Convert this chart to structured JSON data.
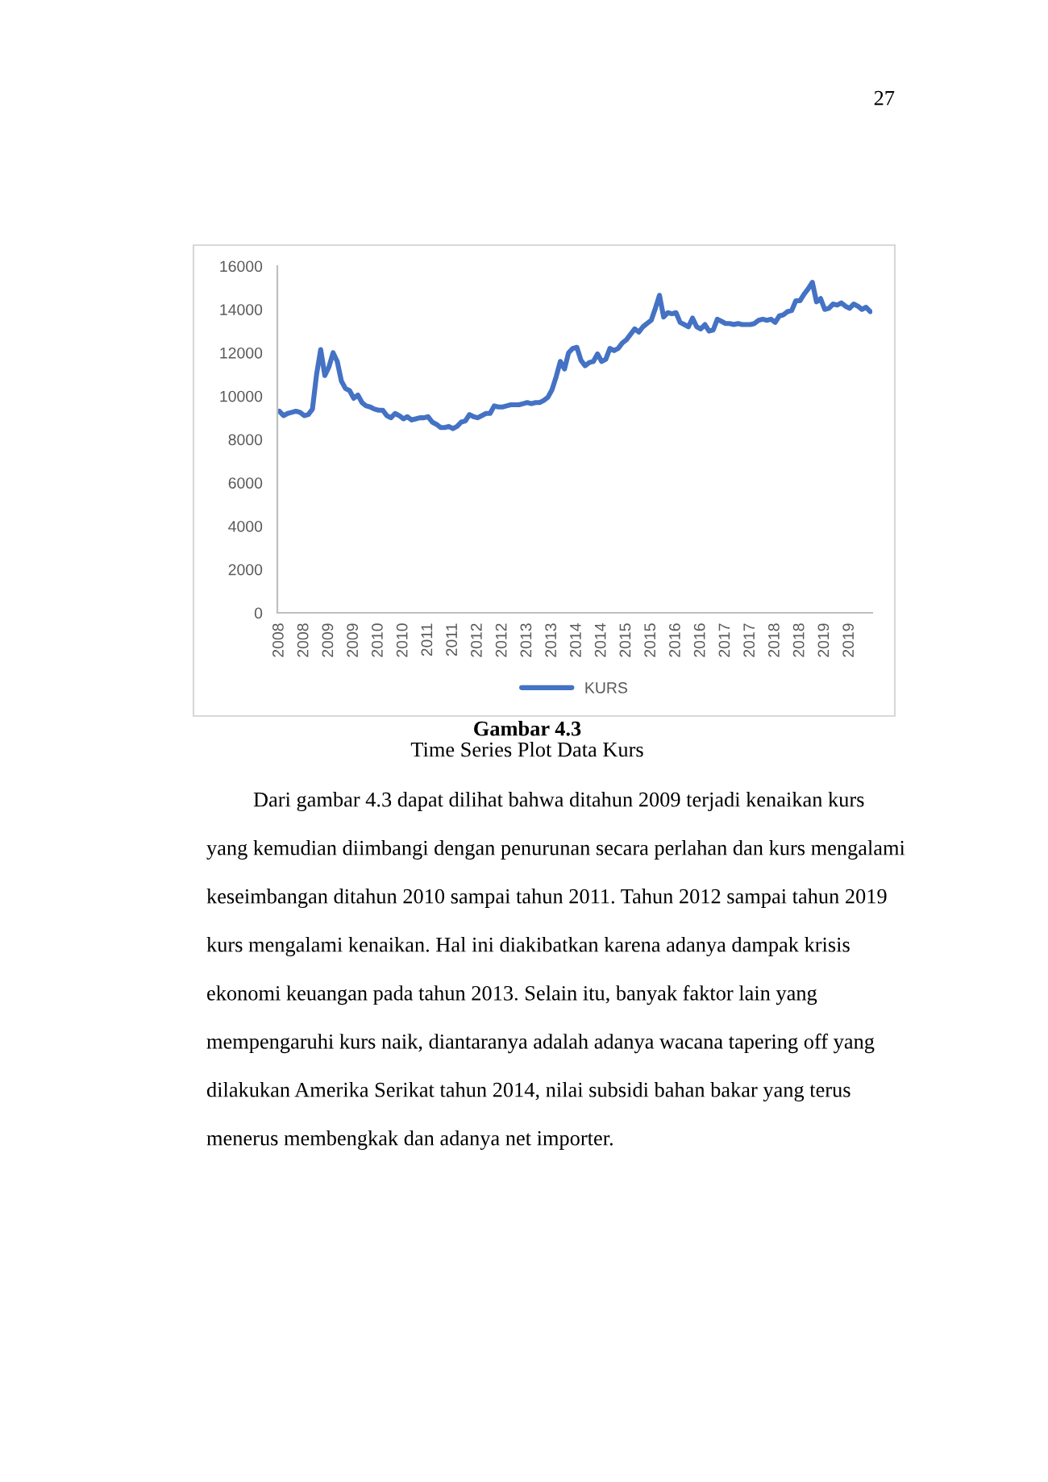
{
  "chart_data": {
    "type": "line",
    "title": "Gambar 4.3",
    "subtitle": "Time Series Plot Data Kurs",
    "annotations": [
      "27",
      "Dari gambar 4.3 dapat dilihat bahwa ditahun 2009 terjadi kenaikan kurs\nyang kemudian diimbangi dengan penurunan secara perlahan dan kurs mengalami\nkeseimbangan ditahun 2010 sampai tahun 2011. Tahun 2012 sampai tahun 2019\nkurs mengalami kenaikan. Hal ini diakibatkan karena adanya dampak krisis\nekonomi keuangan pada tahun 2013. Selain itu, banyak faktor lain yang\nmempengaruhi kurs naik, diantaranya adalah adanya wacana tapering off yang\ndilakukan Amerika Serikat tahun 2014, nilai subsidi bahan bakar yang terus\nmenerus membengkak dan adanya net importer."
    ],
    "categories": [
      "2008",
      null,
      null,
      null,
      null,
      null,
      "2008",
      null,
      null,
      null,
      null,
      null,
      "2009",
      null,
      null,
      null,
      null,
      null,
      "2009",
      null,
      null,
      null,
      null,
      null,
      "2010",
      null,
      null,
      null,
      null,
      null,
      "2010",
      null,
      null,
      null,
      null,
      null,
      "2011",
      null,
      null,
      null,
      null,
      null,
      "2011",
      null,
      null,
      null,
      null,
      null,
      "2012",
      null,
      null,
      null,
      null,
      null,
      "2012",
      null,
      null,
      null,
      null,
      null,
      "2013",
      null,
      null,
      null,
      null,
      null,
      "2013",
      null,
      null,
      null,
      null,
      null,
      "2014",
      null,
      null,
      null,
      null,
      null,
      "2014",
      null,
      null,
      null,
      null,
      null,
      "2015",
      null,
      null,
      null,
      null,
      null,
      "2015",
      null,
      null,
      null,
      null,
      null,
      "2016",
      null,
      null,
      null,
      null,
      null,
      "2016",
      null,
      null,
      null,
      null,
      null,
      "2017",
      null,
      null,
      null,
      null,
      null,
      "2017",
      null,
      null,
      null,
      null,
      null,
      "2018",
      null,
      null,
      null,
      null,
      null,
      "2018",
      null,
      null,
      null,
      null,
      null,
      "2019",
      null,
      null,
      null,
      null,
      null,
      "2019",
      null,
      null,
      null,
      null,
      null
    ],
    "series": [
      {
        "name": "KURS",
        "color": "#4472c4",
        "values": [
          9300,
          9100,
          9200,
          9250,
          9300,
          9250,
          9100,
          9150,
          9400,
          11000,
          12150,
          10950,
          11350,
          12000,
          11600,
          10700,
          10350,
          10250,
          9900,
          10050,
          9700,
          9550,
          9500,
          9400,
          9350,
          9350,
          9100,
          9000,
          9200,
          9100,
          8950,
          9050,
          8900,
          8950,
          9000,
          9000,
          9050,
          8800,
          8700,
          8550,
          8550,
          8600,
          8500,
          8600,
          8800,
          8850,
          9150,
          9050,
          9000,
          9100,
          9200,
          9200,
          9550,
          9500,
          9500,
          9550,
          9600,
          9600,
          9600,
          9650,
          9700,
          9650,
          9700,
          9700,
          9800,
          9950,
          10300,
          10900,
          11600,
          11250,
          12000,
          12200,
          12250,
          11650,
          11400,
          11550,
          11600,
          11950,
          11600,
          11700,
          12200,
          12100,
          12200,
          12450,
          12600,
          12850,
          13100,
          12950,
          13200,
          13350,
          13500,
          14050,
          14650,
          13650,
          13850,
          13800,
          13850,
          13400,
          13300,
          13200,
          13600,
          13200,
          13100,
          13300,
          13000,
          13050,
          13550,
          13450,
          13350,
          13350,
          13300,
          13350,
          13300,
          13300,
          13300,
          13350,
          13500,
          13550,
          13500,
          13550,
          13400,
          13700,
          13750,
          13900,
          13950,
          14400,
          14400,
          14700,
          14950,
          15250,
          14350,
          14500,
          14000,
          14050,
          14250,
          14200,
          14300,
          14150,
          14050,
          14250,
          14150,
          14000,
          14100,
          13900
        ]
      }
    ],
    "ylim": [
      0,
      16000
    ],
    "yticks": [
      0,
      2000,
      4000,
      6000,
      8000,
      10000,
      12000,
      14000,
      16000
    ],
    "grid": false,
    "legend": "bottom"
  }
}
